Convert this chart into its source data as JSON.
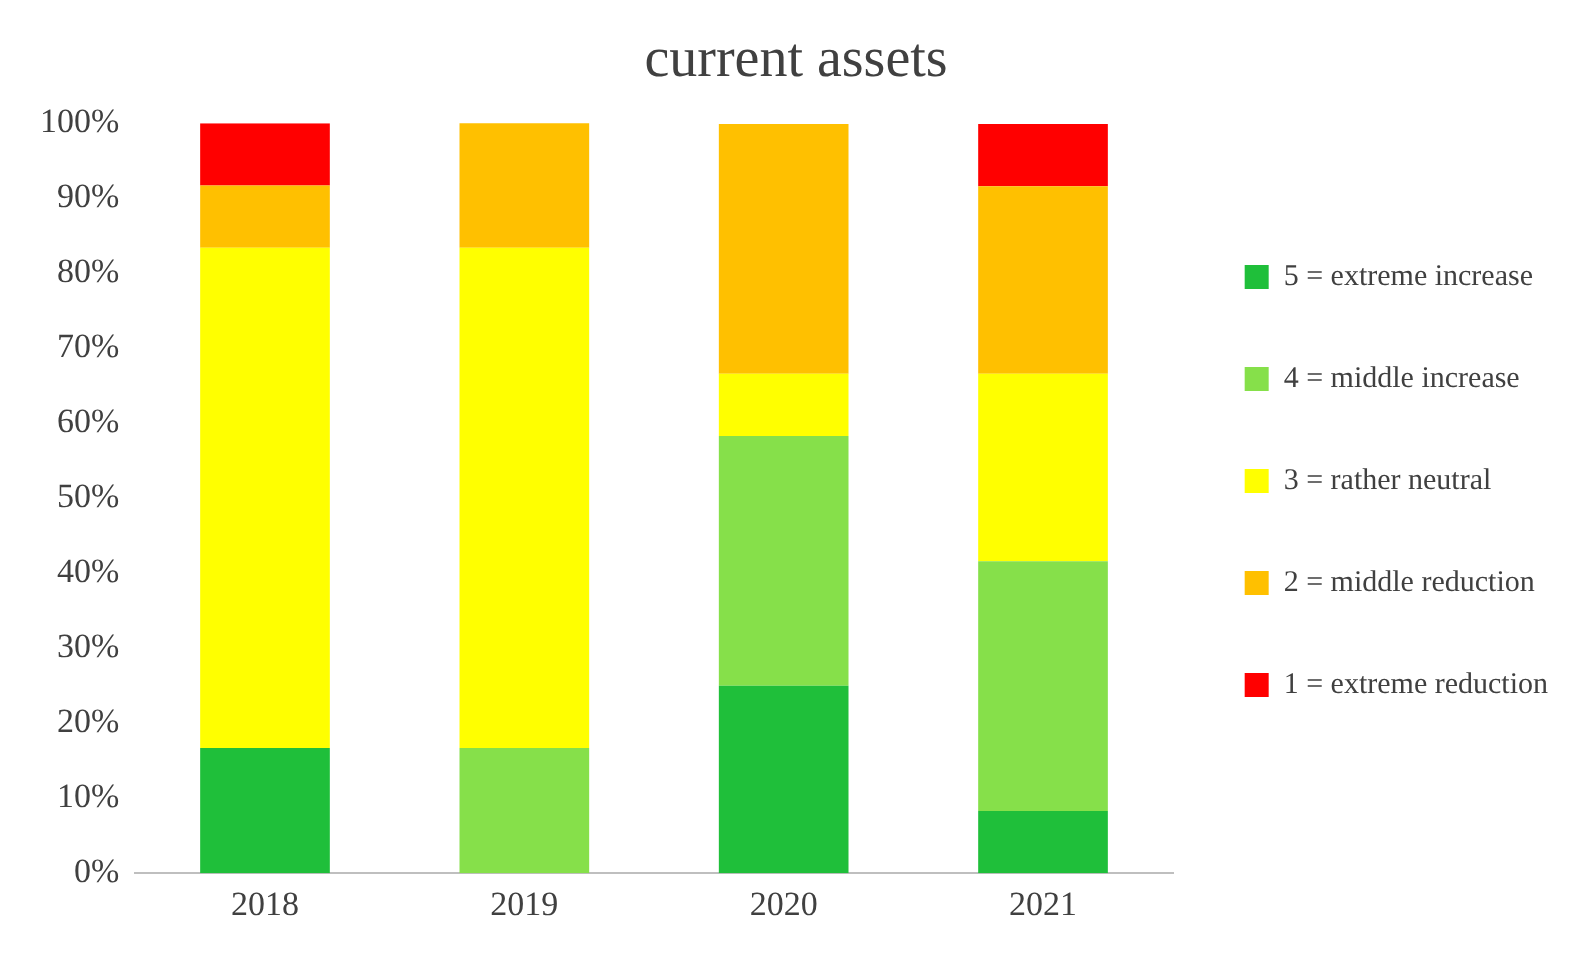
{
  "chart_data": {
    "type": "bar",
    "title": "current assets",
    "stacked": true,
    "categories": [
      "2018",
      "2019",
      "2020",
      "2021"
    ],
    "series": [
      {
        "name": "5 = extreme increase",
        "color": "#1fbf3a",
        "values": [
          16.7,
          0,
          25,
          8.3
        ]
      },
      {
        "name": "4 = middle increase",
        "color": "#86e04a",
        "values": [
          0,
          16.7,
          33.3,
          33.3
        ]
      },
      {
        "name": "3 = rather neutral",
        "color": "#ffff00",
        "values": [
          66.7,
          66.7,
          8.3,
          25
        ]
      },
      {
        "name": "2 = middle reduction",
        "color": "#ffc000",
        "values": [
          8.3,
          16.7,
          33.3,
          25
        ]
      },
      {
        "name": "1 = extreme reduction",
        "color": "#ff0000",
        "values": [
          8.3,
          0,
          0,
          8.3
        ]
      }
    ],
    "ylim": [
      0,
      100
    ],
    "yticks": [
      {
        "value": 0,
        "label": "0%"
      },
      {
        "value": 10,
        "label": "10%"
      },
      {
        "value": 20,
        "label": "20%"
      },
      {
        "value": 30,
        "label": "30%"
      },
      {
        "value": 40,
        "label": "40%"
      },
      {
        "value": 50,
        "label": "50%"
      },
      {
        "value": 60,
        "label": "60%"
      },
      {
        "value": 70,
        "label": "70%"
      },
      {
        "value": 80,
        "label": "80%"
      },
      {
        "value": 90,
        "label": "90%"
      },
      {
        "value": 100,
        "label": "100%"
      }
    ],
    "grid": false,
    "legend": "right"
  }
}
